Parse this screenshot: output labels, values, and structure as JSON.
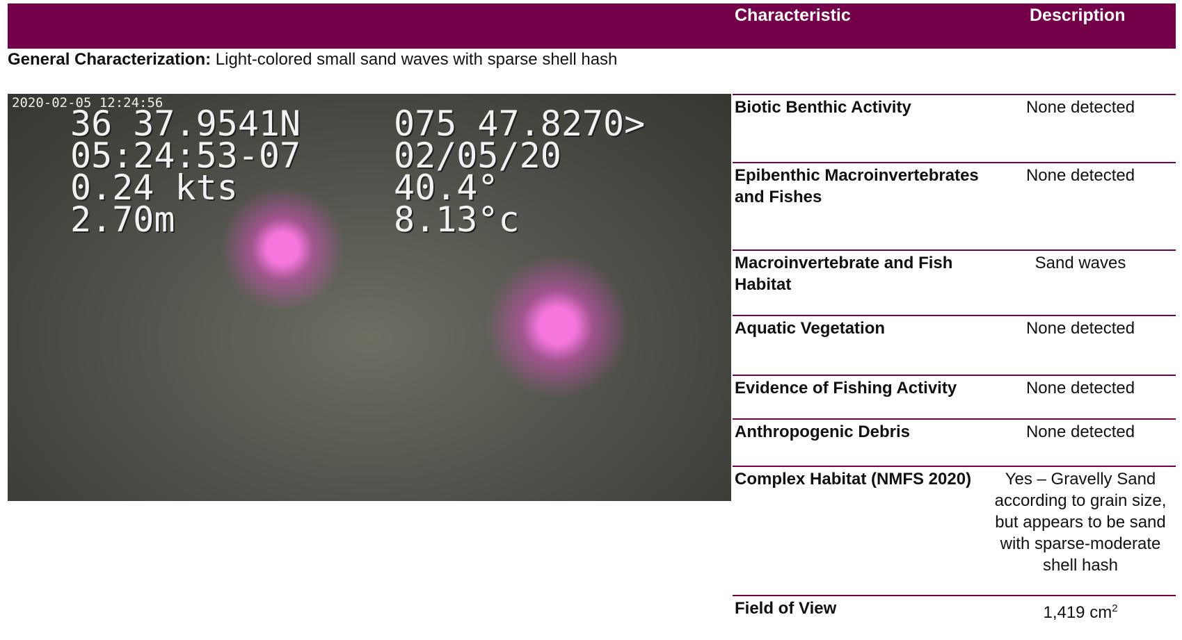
{
  "header": {
    "columns": [
      "Characteristic",
      "Description"
    ]
  },
  "general": {
    "label": "General Characterization:",
    "text": "Light-colored small sand waves with sparse shell hash"
  },
  "photo": {
    "timestamp": "2020-02-05 12:24:56",
    "overlay": [
      "36 37.9541N",
      "075 47.8270>",
      "05:24:53-07",
      "02/05/20",
      "0.24 kts",
      "40.4°",
      "2.70m",
      "8.13°c"
    ]
  },
  "table": {
    "rows": [
      [
        "Biotic Benthic Activity",
        "None detected"
      ],
      [
        "Epibenthic Macroinvertebrates and Fishes",
        "None detected"
      ],
      [
        "Macroinvertebrate and Fish Habitat",
        "Sand waves"
      ],
      [
        "Aquatic Vegetation",
        "None detected"
      ],
      [
        "Evidence of Fishing Activity",
        "None detected"
      ],
      [
        "Anthropogenic Debris",
        "None detected"
      ],
      [
        "Complex Habitat (NMFS 2020)",
        "Yes – Gravelly Sand according to grain size, but appears to be sand with sparse-moderate shell hash"
      ],
      [
        "Field of View",
        {
          "text": "1,419 cm",
          "superscript": "2"
        }
      ]
    ]
  }
}
